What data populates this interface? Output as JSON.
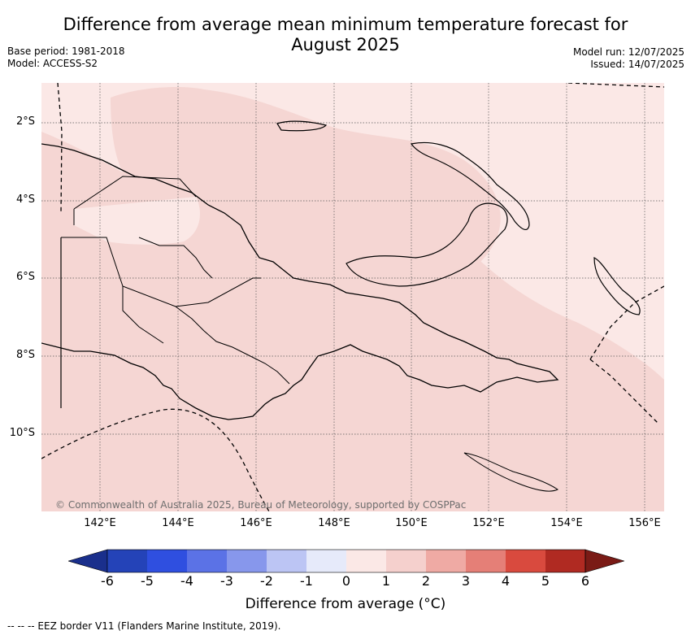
{
  "title_line1": "Difference from average mean minimum temperature forecast for",
  "title_line2": "August 2025",
  "base_period": "Base period: 1981-2018",
  "model": "Model: ACCESS-S2",
  "model_run": "Model run: 12/07/2025",
  "issued": "Issued: 14/07/2025",
  "lat_labels": [
    "2°S",
    "4°S",
    "6°S",
    "8°S",
    "10°S"
  ],
  "lon_labels": [
    "142°E",
    "144°E",
    "146°E",
    "148°E",
    "150°E",
    "152°E",
    "154°E",
    "156°E"
  ],
  "copyright": "© Commonwealth of Australia 2025, Bureau of Meteorology, supported by COSPPac",
  "colorbar": {
    "ticks": [
      "-6",
      "-5",
      "-4",
      "-3",
      "-2",
      "-1",
      "0",
      "1",
      "2",
      "3",
      "4",
      "5",
      "6"
    ],
    "colors": [
      "#1a2f8c",
      "#2443b8",
      "#2f4fe0",
      "#5b72e6",
      "#8797ec",
      "#bcc5f4",
      "#e6eafa",
      "#fbe8e6",
      "#f5d0cd",
      "#efaaa4",
      "#e57f77",
      "#d94a3e",
      "#b02a22",
      "#7a1b16"
    ],
    "label": "Difference from average (°C)"
  },
  "map_colors": {
    "light": "#fbe8e6",
    "medium": "#f5d6d3"
  },
  "footnote": "-- -- -- EEZ border V11 (Flanders Marine Institute, 2019)."
}
